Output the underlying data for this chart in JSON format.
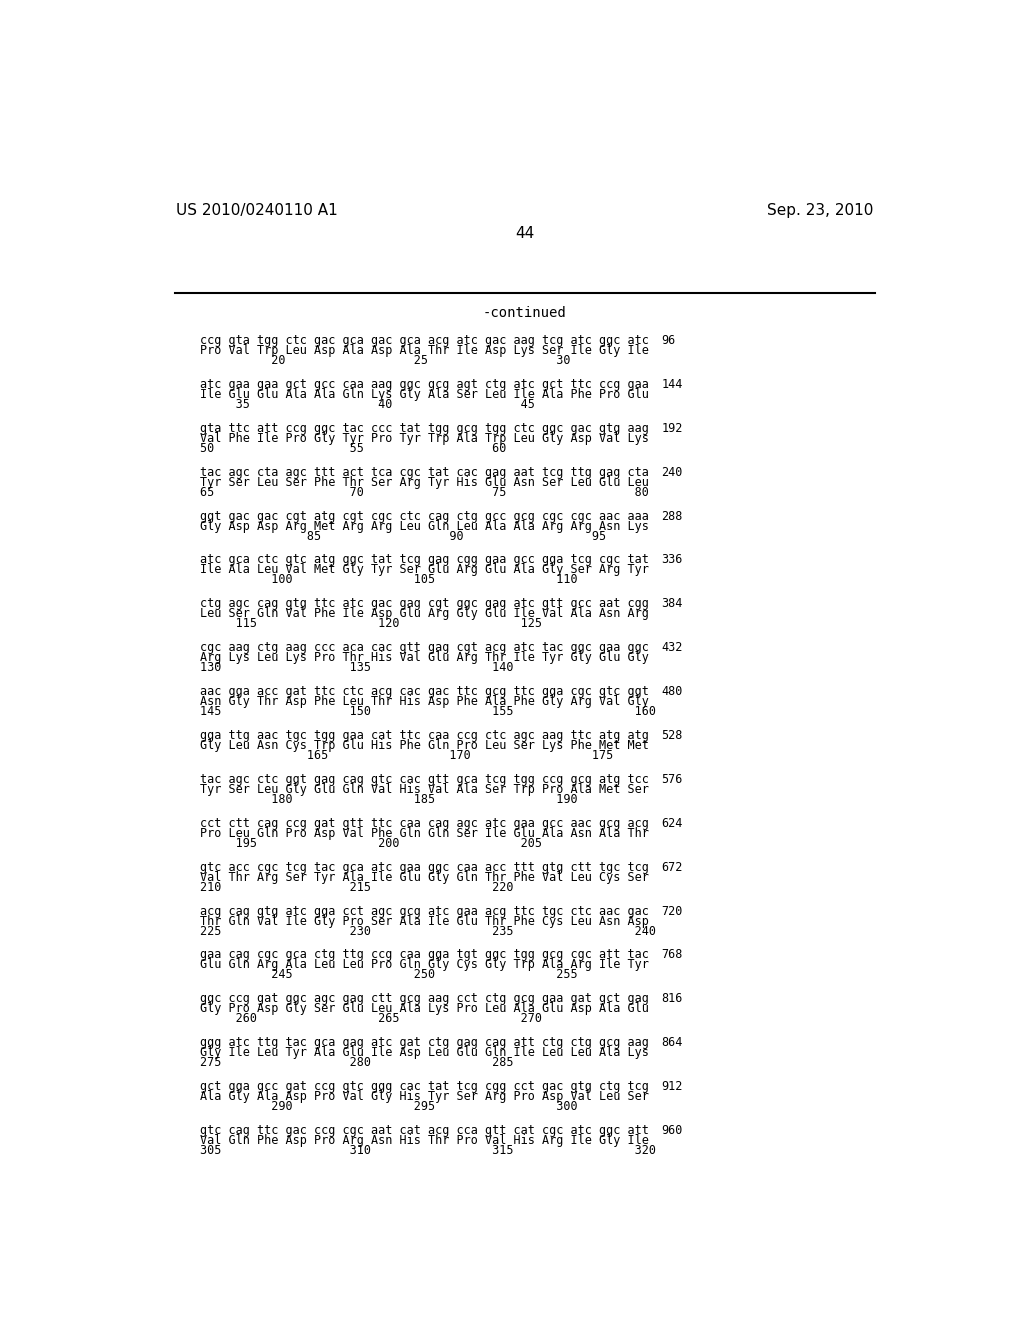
{
  "bg_color": "#ffffff",
  "header_left": "US 2010/0240110 A1",
  "header_right": "Sep. 23, 2010",
  "page_number": "44",
  "continued_label": "-continued",
  "header_fontsize": 11,
  "body_fontsize": 8.5,
  "title_fontsize": 10,
  "lines": [
    {
      "nucleotide": "ccg gta tgg ctc gac gca gac gca acg atc gac aag tcg atc ggc atc",
      "amino": "Pro Val Trp Leu Asp Ala Asp Ala Thr Ile Asp Lys Ser Ile Gly Ile",
      "numbers": "          20                  25                  30",
      "count": "96"
    },
    {
      "nucleotide": "atc gaa gaa gct gcc caa aag ggc gcg agt ctg atc gct ttc ccg gaa",
      "amino": "Ile Glu Glu Ala Ala Gln Lys Gly Ala Ser Leu Ile Ala Phe Pro Glu",
      "numbers": "     35                  40                  45",
      "count": "144"
    },
    {
      "nucleotide": "gta ttc att ccg ggc tac ccc tat tgg gcg tgg ctc ggc gac gtg aag",
      "amino": "Val Phe Ile Pro Gly Tyr Pro Tyr Trp Ala Trp Leu Gly Asp Val Lys",
      "numbers": "50                   55                  60",
      "count": "192"
    },
    {
      "nucleotide": "tac agc cta agc ttt act tca cgc tat cac gag aat tcg ttg gag cta",
      "amino": "Tyr Ser Leu Ser Phe Thr Ser Arg Tyr His Glu Asn Ser Leu Glu Leu",
      "numbers": "65                   70                  75                  80",
      "count": "240"
    },
    {
      "nucleotide": "ggt gac gac cgt atg cgt cgc ctc cag ctg gcc gcg cgc cgc aac aaa",
      "amino": "Gly Asp Asp Arg Met Arg Arg Leu Gln Leu Ala Ala Arg Arg Asn Lys",
      "numbers": "               85                  90                  95",
      "count": "288"
    },
    {
      "nucleotide": "atc gca ctc gtc atg ggc tat tcg gag cgg gaa gcc gga tcg cgc tat",
      "amino": "Ile Ala Leu Val Met Gly Tyr Ser Glu Arg Glu Ala Gly Ser Arg Tyr",
      "numbers": "          100                 105                 110",
      "count": "336"
    },
    {
      "nucleotide": "ctg agc cag gtg ttc atc gac gag cgt ggc gag atc gtt gcc aat cgg",
      "amino": "Leu Ser Gln Val Phe Ile Asp Glu Arg Gly Glu Ile Val Ala Asn Arg",
      "numbers": "     115                 120                 125",
      "count": "384"
    },
    {
      "nucleotide": "cgc aag ctg aag ccc aca cac gtt gag cgt acg atc tac ggc gaa ggc",
      "amino": "Arg Lys Leu Lys Pro Thr His Val Glu Arg Thr Ile Tyr Gly Glu Gly",
      "numbers": "130                  135                 140",
      "count": "432"
    },
    {
      "nucleotide": "aac gga acc gat ttc ctc acg cac gac ttc gcg ttc gga cgc gtc ggt",
      "amino": "Asn Gly Thr Asp Phe Leu Thr His Asp Phe Ala Phe Gly Arg Val Gly",
      "numbers": "145                  150                 155                 160",
      "count": "480"
    },
    {
      "nucleotide": "gga ttg aac tgc tgg gaa cat ttc caa ccg ctc agc aag ttc atg atg",
      "amino": "Gly Leu Asn Cys Trp Glu His Phe Gln Pro Leu Ser Lys Phe Met Met",
      "numbers": "               165                 170                 175",
      "count": "528"
    },
    {
      "nucleotide": "tac agc ctc ggt gag cag gtc cac gtt gca tcg tgg ccg gcg atg tcc",
      "amino": "Tyr Ser Leu Gly Glu Gln Val His Val Ala Ser Trp Pro Ala Met Ser",
      "numbers": "          180                 185                 190",
      "count": "576"
    },
    {
      "nucleotide": "cct ctt cag ccg gat gtt ttc caa cag agc atc gaa gcc aac gcg acg",
      "amino": "Pro Leu Gln Pro Asp Val Phe Gln Gln Ser Ile Glu Ala Asn Ala Thr",
      "numbers": "     195                 200                 205",
      "count": "624"
    },
    {
      "nucleotide": "gtc acc cgc tcg tac gca atc gaa ggc caa acc ttt gtg ctt tgc tcg",
      "amino": "Val Thr Arg Ser Tyr Ala Ile Glu Gly Gln Thr Phe Val Leu Cys Ser",
      "numbers": "210                  215                 220",
      "count": "672"
    },
    {
      "nucleotide": "acg cag gtg atc gga cct agc gcg atc gaa acg ttc tgc ctc aac gac",
      "amino": "Thr Gln Val Ile Gly Pro Ser Ala Ile Glu Thr Phe Cys Leu Asn Asp",
      "numbers": "225                  230                 235                 240",
      "count": "720"
    },
    {
      "nucleotide": "gaa cag cgc gca ctg ttg ccg caa gga tgt ggc tgg gcg cgc att tac",
      "amino": "Glu Gln Arg Ala Leu Leu Pro Gln Gly Cys Gly Trp Ala Arg Ile Tyr",
      "numbers": "          245                 250                 255",
      "count": "768"
    },
    {
      "nucleotide": "ggc ccg gat ggc agc gag ctt gcg aag cct ctg gcg gaa gat gct gag",
      "amino": "Gly Pro Asp Gly Ser Glu Leu Ala Lys Pro Leu Ala Glu Asp Ala Glu",
      "numbers": "     260                 265                 270",
      "count": "816"
    },
    {
      "nucleotide": "ggg atc ttg tac gca gag atc gat ctg gag cag att ctg ctg gcg aag",
      "amino": "Gly Ile Leu Tyr Ala Glu Ile Asp Leu Glu Gln Ile Leu Leu Ala Lys",
      "numbers": "275                  280                 285",
      "count": "864"
    },
    {
      "nucleotide": "gct gga gcc gat ccg gtc ggg cac tat tcg cgg cct gac gtg ctg tcg",
      "amino": "Ala Gly Ala Asp Pro Val Gly His Tyr Ser Arg Pro Asp Val Leu Ser",
      "numbers": "          290                 295                 300",
      "count": "912"
    },
    {
      "nucleotide": "gtc cag ttc gac ccg cgc aat cat acg cca gtt cat cgc atc ggc att",
      "amino": "Val Gln Phe Asp Pro Arg Asn His Thr Pro Val His Arg Ile Gly Ile",
      "numbers": "305                  310                 315                 320",
      "count": "960"
    }
  ]
}
